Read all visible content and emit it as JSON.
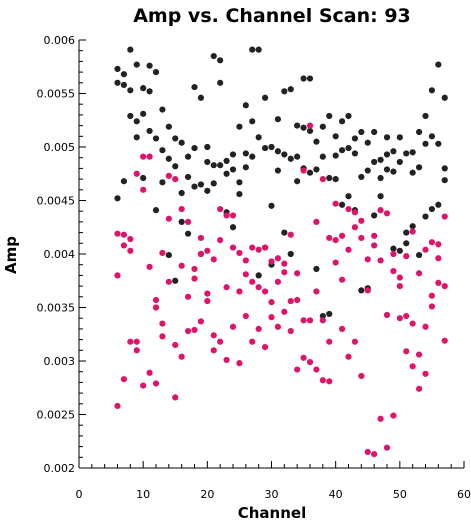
{
  "chart_data": {
    "type": "scatter",
    "title": "Amp vs. Channel Scan: 93",
    "xlabel": "Channel",
    "ylabel": "Amp",
    "xlim": [
      0,
      60
    ],
    "ylim": [
      0.002,
      0.006
    ],
    "xticks": [
      0,
      10,
      20,
      30,
      40,
      50,
      60
    ],
    "xtick_labels": [
      "0",
      "10",
      "20",
      "30",
      "40",
      "50",
      "60"
    ],
    "yticks": [
      0.002,
      0.0025,
      0.003,
      0.0035,
      0.004,
      0.0045,
      0.005,
      0.0055,
      0.006
    ],
    "ytick_labels": [
      "0.002",
      "0.0025",
      "0.003",
      "0.0035",
      "0.004",
      "0.0045",
      "0.005",
      "0.0055",
      "0.006"
    ],
    "grid": false,
    "series": [
      {
        "color": "#222222",
        "points": [
          [
            6,
            0.00573
          ],
          [
            6,
            0.0056
          ],
          [
            6,
            0.00452
          ],
          [
            7,
            0.00568
          ],
          [
            7,
            0.00558
          ],
          [
            7,
            0.00468
          ],
          [
            8,
            0.00591
          ],
          [
            8,
            0.00553
          ],
          [
            8,
            0.00529
          ],
          [
            9,
            0.00577
          ],
          [
            9,
            0.00524
          ],
          [
            9,
            0.00509
          ],
          [
            10,
            0.00555
          ],
          [
            10,
            0.00531
          ],
          [
            10,
            0.00471
          ],
          [
            11,
            0.00576
          ],
          [
            11,
            0.00552
          ],
          [
            11,
            0.00515
          ],
          [
            12,
            0.0057
          ],
          [
            12,
            0.00508
          ],
          [
            12,
            0.00441
          ],
          [
            13,
            0.00535
          ],
          [
            13,
            0.00497
          ],
          [
            13,
            0.00467
          ],
          [
            14,
            0.00519
          ],
          [
            14,
            0.00489
          ],
          [
            14,
            0.00399
          ],
          [
            15,
            0.00508
          ],
          [
            15,
            0.00482
          ],
          [
            15,
            0.00375
          ],
          [
            16,
            0.00504
          ],
          [
            16,
            0.00457
          ],
          [
            16,
            0.0043
          ],
          [
            17,
            0.00491
          ],
          [
            17,
            0.00472
          ],
          [
            17,
            0.00419
          ],
          [
            18,
            0.00556
          ],
          [
            18,
            0.00499
          ],
          [
            18,
            0.00463
          ],
          [
            19,
            0.00546
          ],
          [
            19,
            0.00465
          ],
          [
            19,
            0.004
          ],
          [
            20,
            0.005
          ],
          [
            20,
            0.00486
          ],
          [
            20,
            0.00459
          ],
          [
            21,
            0.00585
          ],
          [
            21,
            0.00483
          ],
          [
            21,
            0.00466
          ],
          [
            22,
            0.00581
          ],
          [
            22,
            0.0056
          ],
          [
            22,
            0.00483
          ],
          [
            23,
            0.00487
          ],
          [
            23,
            0.00475
          ],
          [
            23,
            0.00439
          ],
          [
            24,
            0.00493
          ],
          [
            24,
            0.00479
          ],
          [
            24,
            0.00425
          ],
          [
            25,
            0.00519
          ],
          [
            25,
            0.00467
          ],
          [
            25,
            0.00456
          ],
          [
            26,
            0.00539
          ],
          [
            26,
            0.00494
          ],
          [
            26,
            0.00481
          ],
          [
            27,
            0.00591
          ],
          [
            27,
            0.00524
          ],
          [
            27,
            0.00491
          ],
          [
            28,
            0.00591
          ],
          [
            28,
            0.00509
          ],
          [
            28,
            0.0038
          ],
          [
            29,
            0.00546
          ],
          [
            29,
            0.00499
          ],
          [
            29,
            0.00406
          ],
          [
            30,
            0.005
          ],
          [
            30,
            0.00445
          ],
          [
            30,
            0.0039
          ],
          [
            31,
            0.00526
          ],
          [
            31,
            0.00496
          ],
          [
            31,
            0.00478
          ],
          [
            32,
            0.00552
          ],
          [
            32,
            0.00493
          ],
          [
            32,
            0.0042
          ],
          [
            33,
            0.00554
          ],
          [
            33,
            0.00489
          ],
          [
            33,
            0.004
          ],
          [
            34,
            0.0052
          ],
          [
            34,
            0.00491
          ],
          [
            34,
            0.00468
          ],
          [
            35,
            0.00564
          ],
          [
            35,
            0.00518
          ],
          [
            35,
            0.0048
          ],
          [
            36,
            0.00564
          ],
          [
            36,
            0.00515
          ],
          [
            36,
            0.00476
          ],
          [
            37,
            0.00505
          ],
          [
            37,
            0.00479
          ],
          [
            37,
            0.00386
          ],
          [
            38,
            0.00519
          ],
          [
            38,
            0.00491
          ],
          [
            38,
            0.00342
          ],
          [
            39,
            0.00529
          ],
          [
            39,
            0.00471
          ],
          [
            39,
            0.00344
          ],
          [
            40,
            0.0051
          ],
          [
            40,
            0.00492
          ],
          [
            40,
            0.0047
          ],
          [
            41,
            0.00524
          ],
          [
            41,
            0.00497
          ],
          [
            41,
            0.00446
          ],
          [
            42,
            0.00529
          ],
          [
            42,
            0.00499
          ],
          [
            42,
            0.00454
          ],
          [
            43,
            0.00508
          ],
          [
            43,
            0.00494
          ],
          [
            43,
            0.00441
          ],
          [
            44,
            0.00514
          ],
          [
            44,
            0.00472
          ],
          [
            44,
            0.00366
          ],
          [
            45,
            0.00504
          ],
          [
            45,
            0.00478
          ],
          [
            45,
            0.00368
          ],
          [
            46,
            0.00514
          ],
          [
            46,
            0.00486
          ],
          [
            46,
            0.00436
          ],
          [
            47,
            0.00488
          ],
          [
            47,
            0.00471
          ],
          [
            47,
            0.00454
          ],
          [
            48,
            0.00509
          ],
          [
            48,
            0.00493
          ],
          [
            48,
            0.00479
          ],
          [
            49,
            0.00496
          ],
          [
            49,
            0.00477
          ],
          [
            49,
            0.00405
          ],
          [
            50,
            0.00509
          ],
          [
            50,
            0.00486
          ],
          [
            50,
            0.00403
          ],
          [
            51,
            0.00494
          ],
          [
            51,
            0.0042
          ],
          [
            51,
            0.0041
          ],
          [
            52,
            0.00495
          ],
          [
            52,
            0.00476
          ],
          [
            52,
            0.00426
          ],
          [
            53,
            0.00514
          ],
          [
            53,
            0.00481
          ],
          [
            53,
            0.00399
          ],
          [
            54,
            0.00529
          ],
          [
            54,
            0.00503
          ],
          [
            54,
            0.00435
          ],
          [
            55,
            0.00553
          ],
          [
            55,
            0.0051
          ],
          [
            55,
            0.00442
          ],
          [
            56,
            0.00577
          ],
          [
            56,
            0.00503
          ],
          [
            56,
            0.00446
          ],
          [
            57,
            0.00546
          ],
          [
            57,
            0.0048
          ],
          [
            57,
            0.00469
          ]
        ]
      },
      {
        "color": "#e0136c",
        "points": [
          [
            6,
            0.00419
          ],
          [
            6,
            0.0038
          ],
          [
            6,
            0.00258
          ],
          [
            7,
            0.00418
          ],
          [
            7,
            0.00408
          ],
          [
            7,
            0.00283
          ],
          [
            8,
            0.00403
          ],
          [
            8,
            0.00318
          ],
          [
            8,
            0.00414
          ],
          [
            9,
            0.00475
          ],
          [
            9,
            0.00318
          ],
          [
            9,
            0.0031
          ],
          [
            10,
            0.00491
          ],
          [
            10,
            0.0046
          ],
          [
            10,
            0.00277
          ],
          [
            11,
            0.00491
          ],
          [
            11,
            0.00388
          ],
          [
            11,
            0.00289
          ],
          [
            12,
            0.00357
          ],
          [
            12,
            0.0035
          ],
          [
            12,
            0.00279
          ],
          [
            13,
            0.00401
          ],
          [
            13,
            0.00335
          ],
          [
            13,
            0.00323
          ],
          [
            14,
            0.00473
          ],
          [
            14,
            0.00433
          ],
          [
            14,
            0.00374
          ],
          [
            15,
            0.0047
          ],
          [
            15,
            0.00315
          ],
          [
            15,
            0.00266
          ],
          [
            16,
            0.00442
          ],
          [
            16,
            0.00389
          ],
          [
            16,
            0.00304
          ],
          [
            17,
            0.0043
          ],
          [
            17,
            0.0036
          ],
          [
            17,
            0.00328
          ],
          [
            18,
            0.00386
          ],
          [
            18,
            0.00377
          ],
          [
            18,
            0.00329
          ],
          [
            19,
            0.00415
          ],
          [
            19,
            0.004
          ],
          [
            19,
            0.00337
          ],
          [
            20,
            0.00403
          ],
          [
            20,
            0.00363
          ],
          [
            20,
            0.00356
          ],
          [
            21,
            0.00395
          ],
          [
            21,
            0.00324
          ],
          [
            21,
            0.0031
          ],
          [
            22,
            0.00442
          ],
          [
            22,
            0.00413
          ],
          [
            22,
            0.00318
          ],
          [
            23,
            0.00436
          ],
          [
            23,
            0.00369
          ],
          [
            23,
            0.00301
          ],
          [
            24,
            0.00436
          ],
          [
            24,
            0.00406
          ],
          [
            24,
            0.00332
          ],
          [
            25,
            0.00401
          ],
          [
            25,
            0.00365
          ],
          [
            25,
            0.00298
          ],
          [
            26,
            0.00394
          ],
          [
            26,
            0.00381
          ],
          [
            26,
            0.00342
          ],
          [
            27,
            0.00406
          ],
          [
            27,
            0.00374
          ],
          [
            27,
            0.00318
          ],
          [
            28,
            0.00404
          ],
          [
            28,
            0.00369
          ],
          [
            28,
            0.0033
          ],
          [
            29,
            0.00406
          ],
          [
            29,
            0.00365
          ],
          [
            29,
            0.00313
          ],
          [
            30,
            0.00393
          ],
          [
            30,
            0.00355
          ],
          [
            30,
            0.00341
          ],
          [
            31,
            0.00396
          ],
          [
            31,
            0.00374
          ],
          [
            31,
            0.00332
          ],
          [
            32,
            0.00391
          ],
          [
            32,
            0.00383
          ],
          [
            32,
            0.00346
          ],
          [
            33,
            0.00418
          ],
          [
            33,
            0.00356
          ],
          [
            33,
            0.00328
          ],
          [
            34,
            0.00382
          ],
          [
            34,
            0.00357
          ],
          [
            34,
            0.00292
          ],
          [
            35,
            0.00478
          ],
          [
            35,
            0.00338
          ],
          [
            35,
            0.00303
          ],
          [
            36,
            0.0052
          ],
          [
            36,
            0.00338
          ],
          [
            36,
            0.00299
          ],
          [
            37,
            0.0043
          ],
          [
            37,
            0.00365
          ],
          [
            37,
            0.00292
          ],
          [
            38,
            0.0047
          ],
          [
            38,
            0.00338
          ],
          [
            38,
            0.00282
          ],
          [
            39,
            0.00415
          ],
          [
            39,
            0.00318
          ],
          [
            39,
            0.00281
          ],
          [
            40,
            0.00447
          ],
          [
            40,
            0.00413
          ],
          [
            40,
            0.00392
          ],
          [
            41,
            0.00417
          ],
          [
            41,
            0.00376
          ],
          [
            41,
            0.0033
          ],
          [
            42,
            0.00442
          ],
          [
            42,
            0.00404
          ],
          [
            42,
            0.00304
          ],
          [
            43,
            0.00439
          ],
          [
            43,
            0.00425
          ],
          [
            43,
            0.00318
          ],
          [
            44,
            0.00431
          ],
          [
            44,
            0.00415
          ],
          [
            44,
            0.00286
          ],
          [
            45,
            0.00395
          ],
          [
            45,
            0.00366
          ],
          [
            45,
            0.00215
          ],
          [
            46,
            0.00417
          ],
          [
            46,
            0.00408
          ],
          [
            46,
            0.00213
          ],
          [
            47,
            0.00441
          ],
          [
            47,
            0.00394
          ],
          [
            47,
            0.00246
          ],
          [
            48,
            0.00438
          ],
          [
            48,
            0.00343
          ],
          [
            48,
            0.00219
          ],
          [
            49,
            0.004
          ],
          [
            49,
            0.00384
          ],
          [
            49,
            0.00249
          ],
          [
            50,
            0.00378
          ],
          [
            50,
            0.0037
          ],
          [
            50,
            0.0034
          ],
          [
            51,
            0.00398
          ],
          [
            51,
            0.00342
          ],
          [
            51,
            0.00309
          ],
          [
            52,
            0.00421
          ],
          [
            52,
            0.00335
          ],
          [
            52,
            0.00295
          ],
          [
            53,
            0.00382
          ],
          [
            53,
            0.00306
          ],
          [
            53,
            0.00274
          ],
          [
            54,
            0.00404
          ],
          [
            54,
            0.00332
          ],
          [
            54,
            0.00288
          ],
          [
            55,
            0.00411
          ],
          [
            55,
            0.00361
          ],
          [
            55,
            0.00351
          ],
          [
            56,
            0.00409
          ],
          [
            56,
            0.00396
          ],
          [
            56,
            0.00373
          ],
          [
            57,
            0.00435
          ],
          [
            57,
            0.0037
          ],
          [
            57,
            0.00319
          ]
        ]
      }
    ]
  }
}
